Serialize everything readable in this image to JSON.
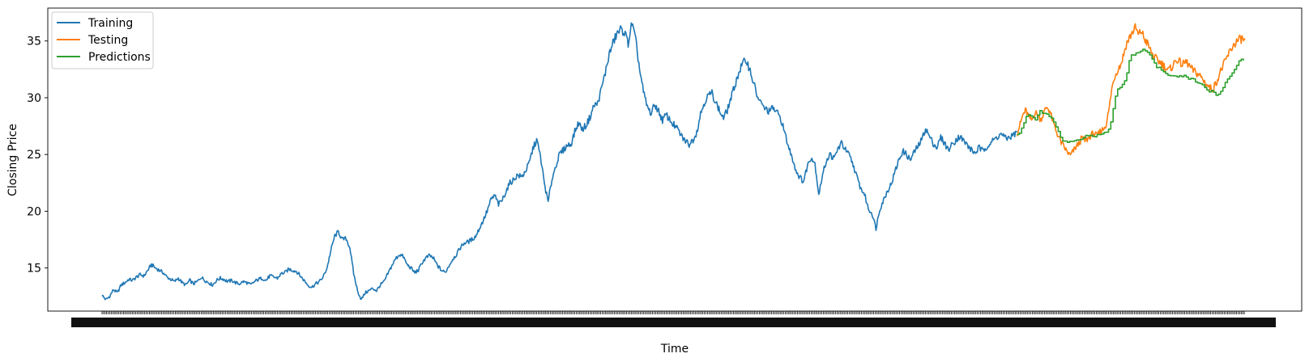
{
  "chart_data": {
    "type": "line",
    "xlabel": "Time",
    "ylabel": "Closing Price",
    "ylim": [
      11.2,
      37.9
    ],
    "yticks": [
      15,
      20,
      25,
      30,
      35
    ],
    "xcount": 1500,
    "x_tick_labels_note": "dense overlapping date labels, unreadable",
    "legend_position": "top-left",
    "series": [
      {
        "name": "Training",
        "color": "#1f77b4",
        "start": 0,
        "values": [
          12.6,
          12.2,
          12.5,
          13.1,
          12.8,
          13.5,
          13.7,
          14.0,
          13.9,
          14.2,
          14.4,
          14.3,
          14.8,
          15.3,
          15.0,
          14.8,
          14.6,
          14.2,
          14.0,
          13.8,
          14.1,
          13.7,
          13.5,
          13.9,
          13.6,
          13.8,
          14.2,
          13.9,
          13.7,
          13.5,
          13.9,
          14.1,
          14.0,
          13.8,
          13.9,
          13.7,
          13.6,
          13.8,
          13.7,
          13.5,
          13.8,
          14.0,
          14.1,
          13.9,
          14.3,
          14.2,
          14.1,
          14.5,
          14.6,
          14.9,
          14.8,
          14.7,
          14.3,
          13.9,
          13.5,
          13.3,
          13.6,
          13.8,
          14.2,
          15.0,
          16.5,
          17.8,
          18.2,
          17.5,
          17.6,
          16.8,
          14.5,
          13.0,
          12.2,
          12.8,
          13.0,
          13.2,
          13.0,
          13.5,
          13.8,
          14.5,
          15.2,
          15.8,
          16.2,
          16.0,
          15.3,
          15.0,
          14.6,
          14.8,
          15.5,
          15.9,
          16.1,
          15.8,
          15.2,
          14.8,
          14.6,
          15.2,
          15.8,
          16.2,
          16.8,
          17.2,
          17.3,
          17.5,
          17.8,
          18.5,
          19.2,
          20.0,
          21.0,
          21.4,
          20.6,
          21.0,
          21.8,
          22.5,
          22.8,
          23.2,
          23.0,
          23.5,
          24.2,
          25.5,
          26.3,
          24.8,
          22.5,
          20.8,
          22.8,
          24.0,
          25.0,
          25.4,
          25.8,
          25.9,
          27.0,
          27.8,
          27.2,
          27.6,
          28.3,
          29.3,
          29.5,
          30.8,
          32.2,
          33.8,
          34.8,
          35.6,
          36.0,
          35.8,
          34.8,
          36.6,
          35.0,
          32.5,
          30.5,
          29.2,
          28.6,
          29.4,
          28.8,
          28.0,
          28.5,
          28.0,
          27.6,
          27.2,
          26.6,
          26.2,
          25.9,
          26.3,
          27.0,
          28.6,
          29.6,
          30.2,
          30.4,
          29.6,
          28.8,
          28.2,
          28.9,
          30.0,
          31.1,
          32.2,
          33.0,
          33.3,
          32.4,
          31.2,
          30.0,
          29.4,
          29.0,
          28.8,
          29.1,
          28.7,
          28.2,
          27.0,
          25.7,
          24.8,
          23.6,
          23.0,
          22.6,
          24.0,
          24.8,
          24.2,
          21.5,
          23.2,
          24.5,
          25.0,
          24.6,
          25.5,
          26.0,
          25.4,
          24.9,
          24.1,
          23.0,
          22.0,
          21.5,
          20.2,
          19.8,
          18.5,
          20.2,
          21.0,
          21.8,
          22.4,
          23.5,
          24.5,
          25.3,
          25.0,
          24.5,
          25.2,
          25.7,
          26.3,
          27.3,
          26.6,
          26.0,
          25.6,
          26.5,
          26.0,
          25.4,
          25.9,
          26.3,
          26.6,
          26.2,
          25.8,
          25.4,
          25.1,
          25.6,
          25.3,
          25.7,
          26.0,
          26.3,
          26.6,
          26.8,
          26.4,
          26.5,
          26.7,
          27.0
        ]
      },
      {
        "name": "Testing",
        "color": "#ff7f0e",
        "start": 1200,
        "values": [
          26.9,
          27.6,
          28.5,
          28.9,
          28.3,
          28.0,
          28.7,
          28.5,
          28.1,
          28.6,
          29.2,
          28.9,
          28.0,
          27.2,
          26.6,
          26.0,
          25.6,
          25.2,
          24.9,
          25.3,
          25.7,
          26.0,
          26.5,
          26.2,
          26.4,
          26.7,
          26.9,
          26.6,
          27.0,
          27.2,
          27.6,
          28.8,
          30.8,
          31.9,
          32.5,
          32.9,
          33.8,
          34.8,
          35.3,
          35.8,
          36.2,
          35.5,
          35.9,
          35.2,
          34.8,
          34.2,
          33.7,
          33.4,
          33.2,
          33.0,
          32.7,
          32.4,
          32.6,
          33.0,
          33.4,
          33.1,
          32.9,
          33.2,
          32.9,
          32.5,
          32.3,
          32.1,
          31.9,
          31.5,
          31.2,
          30.9,
          30.7,
          31.2,
          31.8,
          32.5,
          33.0,
          33.6,
          34.1,
          34.6,
          34.9,
          35.1,
          35.2,
          35.0
        ]
      },
      {
        "name": "Predictions",
        "color": "#2ca02c",
        "start": 1200,
        "values": [
          26.8,
          26.8,
          27.7,
          28.3,
          28.6,
          28.4,
          28.0,
          28.6,
          28.9,
          28.5,
          28.6,
          28.4,
          28.1,
          27.5,
          26.9,
          26.3,
          26.1,
          26.1,
          26.1,
          26.2,
          26.3,
          26.3,
          26.4,
          26.6,
          26.6,
          26.6,
          26.6,
          26.7,
          26.8,
          26.9,
          27.0,
          27.3,
          28.3,
          29.9,
          30.7,
          31.0,
          31.2,
          32.0,
          33.4,
          33.8,
          34.0,
          34.0,
          34.2,
          34.3,
          34.0,
          33.6,
          33.1,
          32.8,
          32.6,
          32.3,
          32.2,
          32.0,
          31.9,
          31.8,
          31.9,
          32.0,
          31.9,
          31.8,
          31.7,
          31.6,
          31.5,
          31.4,
          31.3,
          31.1,
          30.8,
          30.6,
          30.5,
          30.3,
          30.4,
          30.7,
          31.2,
          31.5,
          32.0,
          32.4,
          32.8,
          33.2,
          33.4,
          33.2
        ]
      }
    ]
  }
}
